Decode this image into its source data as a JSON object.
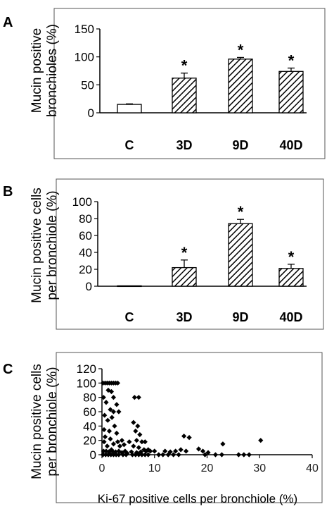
{
  "figure": {
    "panels": [
      {
        "letter": "A",
        "ylabel": [
          "Mucin positive",
          "bronchioles (%)"
        ]
      },
      {
        "letter": "B",
        "ylabel": [
          "Mucin positive cells",
          "per bronchiole (%)"
        ]
      },
      {
        "letter": "C",
        "ylabel": [
          "Mucin positive cells",
          "per bronchiole (%)"
        ],
        "xlabel": "Ki-67 positive cells per bronchiole (%)"
      }
    ]
  },
  "chart_data": [
    {
      "type": "bar",
      "categories": [
        "C",
        "3D",
        "9D",
        "40D"
      ],
      "values": [
        15,
        62,
        96,
        74
      ],
      "errors": [
        1,
        9,
        3,
        6
      ],
      "significance": [
        "",
        "*",
        "*",
        "*"
      ],
      "fills": [
        "plain",
        "hatched",
        "hatched",
        "hatched"
      ],
      "yticks": [
        0,
        50,
        100,
        150
      ],
      "ylim": [
        0,
        150
      ],
      "ylabel": "Mucin positive bronchioles (%)",
      "grid": false
    },
    {
      "type": "bar",
      "categories": [
        "C",
        "3D",
        "9D",
        "40D"
      ],
      "values": [
        0.5,
        22,
        74,
        21
      ],
      "errors": [
        0,
        9,
        5,
        5
      ],
      "significance": [
        "",
        "*",
        "*",
        "*"
      ],
      "fills": [
        "plain",
        "hatched",
        "hatched",
        "hatched"
      ],
      "yticks": [
        0,
        20,
        40,
        60,
        80,
        100
      ],
      "ylim": [
        0,
        100
      ],
      "ylabel": "Mucin positive cells per bronchiole (%)",
      "grid": false
    },
    {
      "type": "scatter",
      "xticks": [
        0,
        10,
        20,
        30,
        40
      ],
      "yticks": [
        0,
        20,
        40,
        60,
        80,
        100,
        120
      ],
      "xlim": [
        0,
        40
      ],
      "ylim": [
        0,
        120
      ],
      "xlabel": "Ki-67 positive cells per bronchiole (%)",
      "ylabel": "Mucin positive cells per bronchiole (%)",
      "grid": false,
      "points": [
        [
          0.2,
          100
        ],
        [
          0.6,
          100
        ],
        [
          1.0,
          100
        ],
        [
          1.4,
          100
        ],
        [
          1.8,
          100
        ],
        [
          2.2,
          100
        ],
        [
          2.6,
          100
        ],
        [
          3.0,
          100
        ],
        [
          0.3,
          80
        ],
        [
          1.2,
          90
        ],
        [
          1.8,
          88
        ],
        [
          2.2,
          80
        ],
        [
          0.8,
          73
        ],
        [
          1.6,
          63
        ],
        [
          2.8,
          70
        ],
        [
          3.2,
          60
        ],
        [
          0.5,
          55
        ],
        [
          1.1,
          48
        ],
        [
          1.9,
          52
        ],
        [
          2.4,
          40
        ],
        [
          2.2,
          60
        ],
        [
          0.4,
          35
        ],
        [
          1.4,
          33
        ],
        [
          2.8,
          30
        ],
        [
          0.6,
          25
        ],
        [
          1.6,
          22
        ],
        [
          0.4,
          18
        ],
        [
          1.0,
          12
        ],
        [
          2.2,
          15
        ],
        [
          3.0,
          18
        ],
        [
          3.4,
          12
        ],
        [
          1.8,
          7
        ],
        [
          0.3,
          5
        ],
        [
          0.8,
          5
        ],
        [
          1.3,
          4
        ],
        [
          2.0,
          5
        ],
        [
          2.6,
          4
        ],
        [
          3.2,
          5
        ],
        [
          3.8,
          3
        ],
        [
          4.4,
          5
        ],
        [
          4.8,
          2
        ],
        [
          0.2,
          0
        ],
        [
          0.7,
          0
        ],
        [
          1.2,
          0
        ],
        [
          1.7,
          0
        ],
        [
          2.2,
          0
        ],
        [
          2.7,
          0
        ],
        [
          3.2,
          0
        ],
        [
          4.0,
          0
        ],
        [
          4.6,
          0
        ],
        [
          3.8,
          20
        ],
        [
          4.2,
          14
        ],
        [
          5.2,
          18
        ],
        [
          6.2,
          80
        ],
        [
          7.0,
          80
        ],
        [
          6.0,
          45
        ],
        [
          6.8,
          40
        ],
        [
          6.4,
          33
        ],
        [
          7.2,
          28
        ],
        [
          6.6,
          20
        ],
        [
          7.6,
          18
        ],
        [
          8.2,
          18
        ],
        [
          6.0,
          12
        ],
        [
          7.0,
          10
        ],
        [
          8.0,
          7
        ],
        [
          8.8,
          7
        ],
        [
          5.6,
          4
        ],
        [
          6.6,
          3
        ],
        [
          7.4,
          4
        ],
        [
          8.4,
          5
        ],
        [
          9.2,
          5
        ],
        [
          5.8,
          0
        ],
        [
          6.4,
          0
        ],
        [
          7.0,
          0
        ],
        [
          7.6,
          0
        ],
        [
          8.2,
          0
        ],
        [
          8.8,
          0
        ],
        [
          10.0,
          5
        ],
        [
          12.0,
          5
        ],
        [
          13.0,
          4
        ],
        [
          14.0,
          5
        ],
        [
          15.0,
          7
        ],
        [
          16.0,
          5
        ],
        [
          15.6,
          26
        ],
        [
          16.6,
          24
        ],
        [
          18.4,
          8
        ],
        [
          19.2,
          5
        ],
        [
          20.2,
          3
        ],
        [
          23.0,
          15
        ],
        [
          27.0,
          0
        ],
        [
          28.0,
          0
        ],
        [
          30.2,
          20
        ],
        [
          10.8,
          0
        ],
        [
          11.6,
          0
        ],
        [
          12.6,
          0
        ],
        [
          13.6,
          0
        ],
        [
          14.6,
          0
        ],
        [
          19.6,
          0
        ],
        [
          21.6,
          0
        ],
        [
          22.8,
          0
        ],
        [
          26.0,
          0
        ]
      ]
    }
  ]
}
